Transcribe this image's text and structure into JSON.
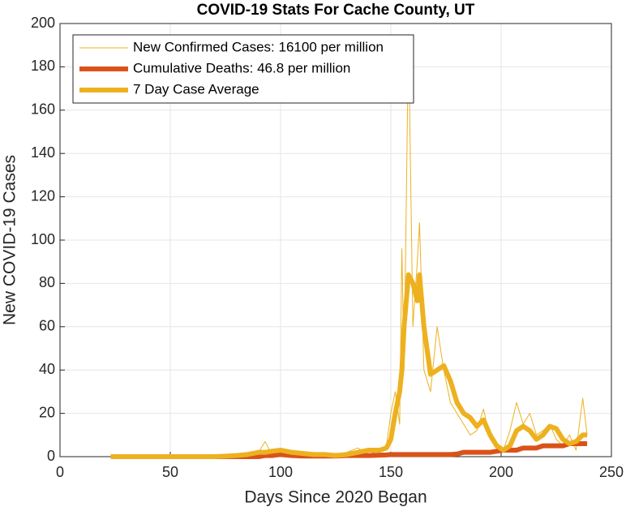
{
  "chart_data": {
    "type": "line",
    "title": "COVID-19 Stats For Cache County, UT",
    "x_label": "Days Since 2020 Began",
    "y_label": "New COVID-19 Cases",
    "xlim": [
      0,
      250
    ],
    "xticks": [
      0,
      50,
      100,
      150,
      200,
      250
    ],
    "ylim": [
      0,
      200
    ],
    "yticks": [
      0,
      20,
      40,
      60,
      80,
      100,
      120,
      140,
      160,
      180,
      200
    ],
    "grid": true,
    "legend": "upper left",
    "x": [
      23,
      30,
      40,
      50,
      60,
      70,
      76,
      80,
      85,
      90,
      93,
      96,
      100,
      105,
      110,
      115,
      120,
      125,
      130,
      135,
      140,
      145,
      148,
      150,
      152,
      154,
      155,
      156,
      158,
      160,
      162,
      163,
      165,
      168,
      171,
      174,
      177,
      180,
      183,
      186,
      189,
      192,
      195,
      198,
      201,
      204,
      207,
      210,
      213,
      216,
      219,
      222,
      225,
      228,
      231,
      234,
      237,
      239
    ],
    "series": [
      {
        "name": "New Confirmed Cases: 16100 per million",
        "color": "#EDB120",
        "values": [
          0,
          0,
          0,
          0,
          0,
          0,
          0,
          1,
          0,
          2,
          7,
          1,
          3,
          2,
          1,
          0,
          1,
          0,
          2,
          4,
          1,
          3,
          5,
          20,
          30,
          15,
          96,
          40,
          195,
          60,
          90,
          108,
          40,
          30,
          60,
          40,
          25,
          20,
          15,
          10,
          12,
          22,
          8,
          5,
          3,
          12,
          25,
          15,
          20,
          10,
          12,
          15,
          8,
          5,
          10,
          3,
          27,
          10
        ]
      },
      {
        "name": "Cumulative Deaths: 46.8 per million",
        "color": "#D95319",
        "values": [
          0,
          0,
          0,
          0,
          0,
          0,
          0,
          0,
          0,
          0,
          0.5,
          0.5,
          1,
          0.5,
          0.3,
          0.3,
          0.3,
          0.3,
          0.5,
          0.5,
          0.5,
          0.7,
          0.8,
          1,
          1,
          1,
          1,
          1,
          1,
          1,
          1,
          1,
          1,
          1,
          1,
          1,
          1,
          1.2,
          2,
          2,
          2,
          2,
          2,
          2.5,
          3,
          3,
          3,
          4,
          4,
          4,
          5,
          5,
          5,
          5,
          6,
          6,
          6,
          6
        ]
      },
      {
        "name": "7 Day Case Average",
        "color": "#EDB120",
        "values": [
          0,
          0,
          0,
          0,
          0,
          0,
          0.3,
          0.5,
          1,
          2,
          2,
          2.5,
          3,
          2,
          1.5,
          1,
          1,
          0.5,
          1,
          2,
          3,
          3,
          4,
          8,
          20,
          30,
          40,
          60,
          84,
          80,
          72,
          84,
          60,
          38,
          40,
          42,
          35,
          25,
          20,
          18,
          14,
          17,
          10,
          5,
          3,
          5,
          12,
          14,
          12,
          8,
          10,
          14,
          13,
          8,
          6,
          7,
          10,
          10
        ]
      }
    ]
  }
}
